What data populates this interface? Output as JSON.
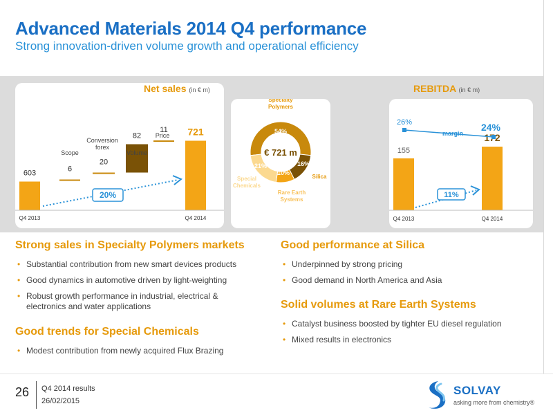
{
  "header": {
    "title": "Advanced Materials 2014 Q4 performance",
    "subtitle": "Strong innovation-driven volume growth and operational efficiency"
  },
  "colors": {
    "accent": "#f3a516",
    "title_blue": "#1a6fc4",
    "orange_heading": "#e69a0c",
    "dark_brown": "#7a5206",
    "gold": "#c8890c",
    "light_gold": "#f8c15a",
    "pale_gold": "#fbd990",
    "dashed_blue": "#2a92d8"
  },
  "chart_data": [
    {
      "type": "waterfall",
      "title": "Net sales",
      "unit": "(in € m)",
      "categories": [
        "Q4 2013",
        "Scope",
        "Conversion forex",
        "Volume",
        "Price",
        "Q4 2014"
      ],
      "values": [
        603,
        6,
        20,
        82,
        11,
        721
      ],
      "value_labels": [
        "603",
        "6",
        "20",
        "82",
        "11",
        "721"
      ],
      "x_labels": [
        "Q4 2013",
        "Q4 2014"
      ],
      "annotation": "20%"
    },
    {
      "type": "pie",
      "center_label": "€ 721 m",
      "slices": [
        {
          "name": "Specialty Polymers",
          "label_lines": [
            "Specialty",
            "Polymers"
          ],
          "value": 54,
          "value_label": "54%",
          "color": "#c8890c"
        },
        {
          "name": "Silica",
          "label_lines": [
            "Silica"
          ],
          "value": 16,
          "value_label": "16%",
          "color": "#7a5206"
        },
        {
          "name": "Rare Earth Systems",
          "label_lines": [
            "Rare Earth",
            "Systems"
          ],
          "value": 10,
          "value_label": "10%",
          "color": "#f3a516"
        },
        {
          "name": "Special Chemicals",
          "label_lines": [
            "Special",
            "Chemicals"
          ],
          "value": 21,
          "value_label": "21%",
          "color": "#fbd990"
        }
      ]
    },
    {
      "type": "bar",
      "title": "REBITDA",
      "unit": "(in € m)",
      "categories": [
        "Q4 2013",
        "Q4 2014"
      ],
      "values": [
        155,
        172
      ],
      "value_labels": [
        "155",
        "172"
      ],
      "margin_series": {
        "name": "margin",
        "values": [
          26,
          24
        ],
        "labels": [
          "26%",
          "24%"
        ]
      },
      "annotation": "11%"
    }
  ],
  "sections": {
    "sp": {
      "heading": "Strong sales in Specialty Polymers markets",
      "bullets": [
        "Substantial contribution from new smart devices products",
        "Good dynamics in automotive driven by light-weighting",
        "Robust growth performance in industrial, electrical & electronics and water applications"
      ]
    },
    "sc": {
      "heading": "Good trends for Special Chemicals",
      "bullets": [
        "Modest contribution from newly acquired Flux Brazing"
      ]
    },
    "silica": {
      "heading": "Good performance at Silica",
      "bullets": [
        "Underpinned by strong pricing",
        "Good demand in North America and Asia"
      ]
    },
    "res": {
      "heading": "Solid volumes at Rare Earth Systems",
      "bullets": [
        "Catalyst business boosted by tighter EU diesel regulation",
        "Mixed results in electronics"
      ]
    }
  },
  "footer": {
    "page_number": "26",
    "line1": "Q4 2014 results",
    "line2": "26/02/2015",
    "logo_name": "SOLVAY",
    "logo_tagline": "asking more from chemistry®",
    "logo_icon": "solvay-s-icon"
  }
}
